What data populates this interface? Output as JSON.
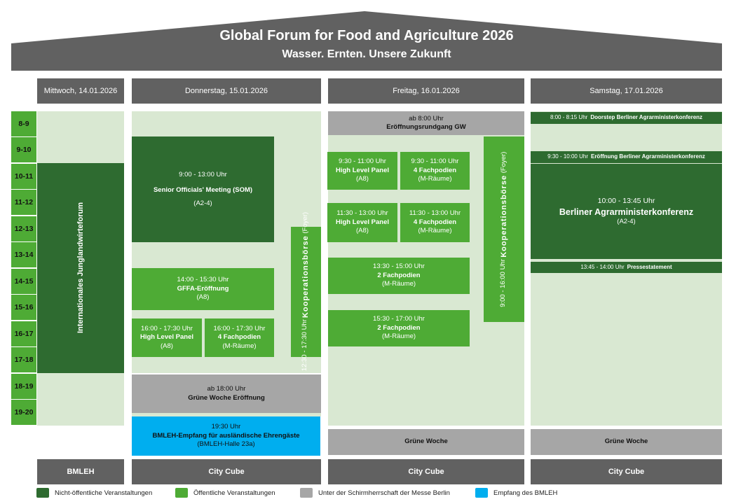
{
  "header": {
    "title": "Global Forum for Food and Agriculture 2026",
    "subtitle": "Wasser. Ernten. Unsere Zukunft"
  },
  "colors": {
    "non_public": "#2e6b30",
    "public": "#4eab35",
    "background": "#d9e8d2",
    "messe": "#a6a6a6",
    "reception": "#00aeef",
    "header": "#616161"
  },
  "days": [
    "Mittwoch, 14.01.2026",
    "Donnerstag, 15.01.2026",
    "Freitag, 16.01.2026",
    "Samstag, 17.01.2026"
  ],
  "hours": [
    "8-9",
    "9-10",
    "10-11",
    "11-12",
    "12-13",
    "13-14",
    "14-15",
    "15-16",
    "16-17",
    "17-18",
    "18-19",
    "19-20"
  ],
  "wed": {
    "forum": "Internationales Junglandwirteforum"
  },
  "thu": {
    "som": {
      "time": "9:00 - 13:00 Uhr",
      "title": "Senior Officials' Meeting (SOM)",
      "room": "(A2-4)"
    },
    "gffa": {
      "time": "14:00 - 15:30 Uhr",
      "title": "GFFA-Eröffnung",
      "room": "(A8)"
    },
    "hlp": {
      "time": "16:00 - 17:30 Uhr",
      "title": "High Level Panel",
      "room": "(A8)"
    },
    "fp": {
      "time": "16:00 - 17:30 Uhr",
      "title": "4 Fachpodien",
      "room": "(M-Räume)"
    },
    "koop": {
      "time": "12:30 - 17:30 Uhr",
      "title": "Kooperationsbörse",
      "room": "(Foyer)"
    },
    "gw": {
      "time": "ab 18:00 Uhr",
      "title": "Grüne Woche Eröffnung"
    },
    "reception": {
      "time": "19:30 Uhr",
      "title": "BMLEH-Empfang für ausländische Ehrengäste",
      "room": "(BMLEH-Halle 23a)"
    }
  },
  "fri": {
    "tour": {
      "time": "ab 8:00 Uhr",
      "title": "Eröffnungsrundgang GW"
    },
    "hlp1": {
      "time": "9:30 - 11:00 Uhr",
      "title": "High Level Panel",
      "room": "(A8)"
    },
    "fp1": {
      "time": "9:30 - 11:00 Uhr",
      "title": "4 Fachpodien",
      "room": "(M-Räume)"
    },
    "hlp2": {
      "time": "11:30 - 13:00 Uhr",
      "title": "High Level Panel",
      "room": "(A8)"
    },
    "fp2": {
      "time": "11:30 - 13:00 Uhr",
      "title": "4 Fachpodien",
      "room": "(M-Räume)"
    },
    "fp3": {
      "time": "13:30 - 15:00 Uhr",
      "title": "2 Fachpodien",
      "room": "(M-Räume)"
    },
    "fp4": {
      "time": "15:30 - 17:00 Uhr",
      "title": "2 Fachpodien",
      "room": "(M-Räume)"
    },
    "koop": {
      "time": "9:00 - 16:00 Uhr",
      "title": "Kooperationsbörse",
      "room": "(Foyer)"
    },
    "gw": "Grüne Woche"
  },
  "sat": {
    "doorstep": {
      "time": "8:00 - 8:15 Uhr",
      "title": "Doorstep Berliner Agrarministerkonferenz"
    },
    "opening": {
      "time": "9:30 - 10:00 Uhr",
      "title": "Eröffnung Berliner Agrarministerkonferenz"
    },
    "conf": {
      "time": "10:00 - 13:45 Uhr",
      "title": "Berliner Agrarministerkonferenz",
      "room": "(A2-4)"
    },
    "press": {
      "time": "13:45 - 14:00 Uhr",
      "title": "Pressestatement"
    },
    "gw": "Grüne Woche"
  },
  "venues": [
    "BMLEH",
    "City Cube",
    "City Cube",
    "City Cube"
  ],
  "legend": [
    "Nicht-öffentliche Veranstaltungen",
    "Öffentliche Veranstaltungen",
    "Unter der Schirmherrschaft der Messe Berlin",
    "Empfang des BMLEH"
  ]
}
